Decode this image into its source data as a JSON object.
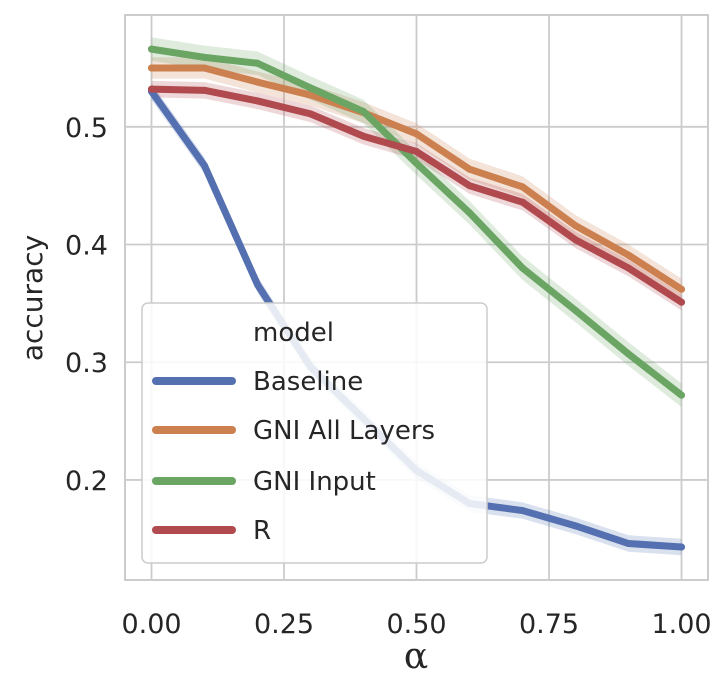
{
  "chart_data": {
    "type": "line",
    "xlabel": "α",
    "ylabel": "accuracy",
    "xlim": [
      -0.05,
      1.05
    ],
    "ylim": [
      0.115,
      0.595
    ],
    "xticks": [
      0.0,
      0.25,
      0.5,
      0.75,
      1.0
    ],
    "xtick_labels": [
      "0.00",
      "0.25",
      "0.50",
      "0.75",
      "1.00"
    ],
    "yticks": [
      0.2,
      0.3,
      0.4,
      0.5
    ],
    "ytick_labels": [
      "0.2",
      "0.3",
      "0.4",
      "0.5"
    ],
    "grid": true,
    "legend": {
      "title": "model",
      "placement": "lower-left"
    },
    "x": [
      0.0,
      0.1,
      0.2,
      0.3,
      0.4,
      0.5,
      0.6,
      0.7,
      0.8,
      0.9,
      1.0
    ],
    "series": [
      {
        "name": "Baseline",
        "color": "#5470b0",
        "values": [
          0.53,
          0.467,
          0.366,
          0.296,
          0.252,
          0.208,
          0.18,
          0.174,
          0.161,
          0.146,
          0.143
        ],
        "band": 0.007
      },
      {
        "name": "GNI All Layers",
        "color": "#cc8050",
        "values": [
          0.55,
          0.55,
          0.538,
          0.527,
          0.512,
          0.494,
          0.464,
          0.449,
          0.416,
          0.391,
          0.362
        ],
        "band": 0.009
      },
      {
        "name": "GNI Input",
        "color": "#6aa564",
        "values": [
          0.566,
          0.559,
          0.554,
          0.533,
          0.513,
          0.469,
          0.427,
          0.38,
          0.344,
          0.307,
          0.272
        ],
        "band": 0.01
      },
      {
        "name": "R",
        "color": "#b04a4e",
        "values": [
          0.532,
          0.531,
          0.522,
          0.511,
          0.492,
          0.479,
          0.45,
          0.436,
          0.404,
          0.38,
          0.351
        ],
        "band": 0.007
      }
    ]
  }
}
